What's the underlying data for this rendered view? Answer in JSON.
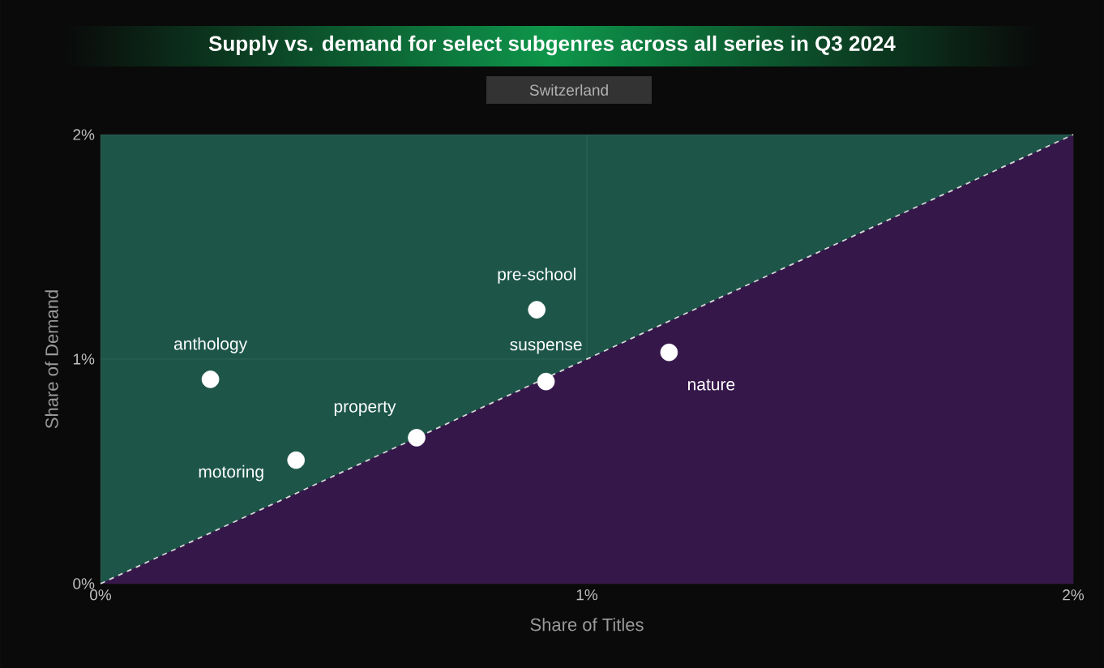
{
  "chart_data": {
    "type": "scatter",
    "title": "Supply vs. demand for select subgenres across all series in Q3 2024",
    "subtitle": "Switzerland",
    "xlabel": "Share of Titles",
    "ylabel": "Share of Demand",
    "xlim": [
      0,
      2
    ],
    "ylim": [
      0,
      2
    ],
    "xticks": [
      {
        "value": 0,
        "label": "0%"
      },
      {
        "value": 1,
        "label": "1%"
      },
      {
        "value": 2,
        "label": "2%"
      }
    ],
    "yticks": [
      {
        "value": 0,
        "label": "0%"
      },
      {
        "value": 1,
        "label": "1%"
      },
      {
        "value": 2,
        "label": "2%"
      }
    ],
    "grid": true,
    "series": [
      {
        "type": "area",
        "color": "#35174a",
        "line_style": "dashed",
        "x": [
          0,
          2
        ],
        "values": [
          0,
          2
        ]
      },
      {
        "color": "#ffffff",
        "marker": "circle",
        "x": [
          0.226,
          0.402,
          0.65,
          0.897,
          0.916,
          1.169
        ],
        "values": [
          0.91,
          0.55,
          0.65,
          1.22,
          0.9,
          1.03
        ]
      }
    ],
    "annotations": [
      {
        "text": "anthology",
        "x": 0.226,
        "y": 0.91
      },
      {
        "text": "motoring",
        "x": 0.402,
        "y": 0.55
      },
      {
        "text": "property",
        "x": 0.65,
        "y": 0.65
      },
      {
        "text": "pre-school",
        "x": 0.897,
        "y": 1.22
      },
      {
        "text": "suspense",
        "x": 0.916,
        "y": 0.9
      },
      {
        "text": "nature",
        "x": 1.169,
        "y": 1.03
      }
    ]
  }
}
